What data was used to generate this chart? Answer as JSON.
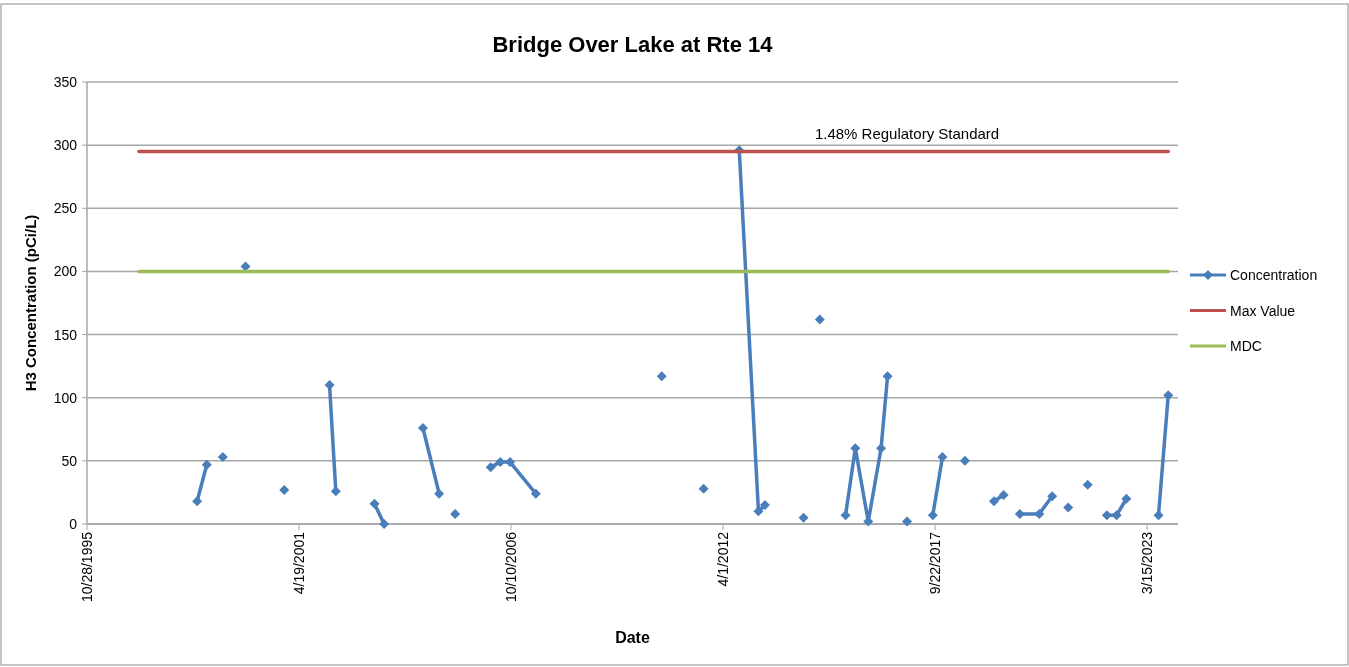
{
  "chart_data": {
    "type": "line",
    "title": "Bridge Over Lake at Rte 14",
    "xlabel": "Date",
    "ylabel": "H3 Concentration (pCi/L)",
    "xlim": [
      "1995-10-28",
      "2024-01-01"
    ],
    "xticks": [
      {
        "value": "1995-10-28",
        "label": "10/28/1995"
      },
      {
        "value": "2001-04-19",
        "label": "4/19/2001"
      },
      {
        "value": "2006-10-10",
        "label": "10/10/2006"
      },
      {
        "value": "2012-04-01",
        "label": "4/1/2012"
      },
      {
        "value": "2017-09-22",
        "label": "9/22/2017"
      },
      {
        "value": "2023-03-15",
        "label": "3/15/2023"
      }
    ],
    "ylim": [
      0,
      350
    ],
    "yticks": [
      0,
      50,
      100,
      150,
      200,
      250,
      300,
      350
    ],
    "grid": "y",
    "legend": "right",
    "marker": "diamond",
    "line_style": "solid",
    "annotations": [
      {
        "text": "1.48% Regulatory Standard",
        "x": "2017-01",
        "y": 295
      }
    ],
    "series": [
      {
        "name": "Concentration",
        "color": "#4a7ebb",
        "x": [
          "1998-09",
          "1998-12",
          "1999-02",
          "1999-05",
          "1999-09",
          "1999-12",
          "2000-03",
          "2000-12",
          "2001-04",
          "2002-02",
          "2002-04",
          "2002-12",
          "2003-04",
          "2003-07",
          "2003-09",
          "2004-07",
          "2004-12",
          "2005-02",
          "2005-05",
          "2005-09",
          "2006-04",
          "2006-07",
          "2006-10",
          "2007-06",
          "2007-08",
          "2010-06",
          "2010-09",
          "2011-02",
          "2011-10",
          "2011-12",
          "2012-09",
          "2013-03",
          "2013-05",
          "2013-09",
          "2014-05",
          "2014-07",
          "2014-10",
          "2015-03",
          "2015-06",
          "2015-09",
          "2016-01",
          "2016-05",
          "2016-07",
          "2016-10",
          "2017-01",
          "2017-05",
          "2017-09",
          "2017-12",
          "2018-04",
          "2018-07",
          "2018-11",
          "2019-04",
          "2019-07",
          "2019-10",
          "2019-12",
          "2020-06",
          "2020-10",
          "2021-01",
          "2021-03",
          "2021-06",
          "2021-09",
          "2022-01",
          "2022-03",
          "2022-06",
          "2022-09",
          "2023-01",
          "2023-07",
          "2023-10"
        ],
        "values": [
          18,
          47,
          null,
          53,
          null,
          204,
          null,
          27,
          null,
          110,
          26,
          null,
          16,
          0,
          null,
          76,
          24,
          null,
          8,
          null,
          45,
          49,
          49,
          24,
          null,
          null,
          117,
          null,
          28,
          null,
          296,
          10,
          15,
          null,
          5,
          null,
          162,
          null,
          7,
          60,
          2,
          60,
          117,
          null,
          2,
          null,
          7,
          53,
          null,
          50,
          null,
          18,
          23,
          null,
          8,
          8,
          22,
          null,
          13,
          null,
          31,
          null,
          7,
          7,
          20,
          null,
          7,
          102
        ]
      },
      {
        "name": "Max Value",
        "color": "#c0504d",
        "marker": "none",
        "x": [
          "1997-03",
          "2023-10"
        ],
        "values": [
          295,
          295
        ]
      },
      {
        "name": "MDC",
        "color": "#9bbb59",
        "marker": "none",
        "x": [
          "1997-03",
          "2023-10"
        ],
        "values": [
          200,
          200
        ]
      }
    ]
  }
}
